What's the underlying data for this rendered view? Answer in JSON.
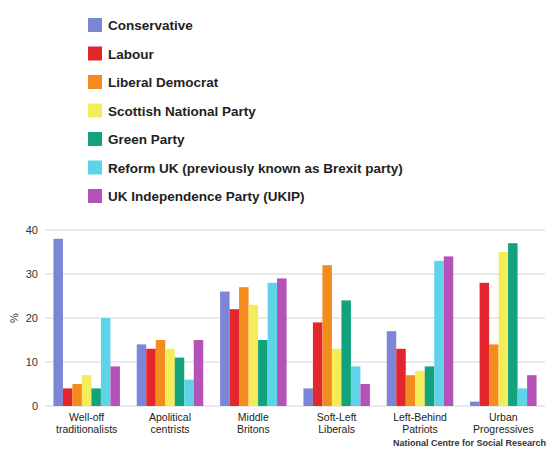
{
  "chart_data": {
    "type": "bar",
    "ylabel": "%",
    "source": "National Centre for Social Research",
    "categories": [
      "Well-off traditionalists",
      "Apolitical centrists",
      "Middle Britons",
      "Soft-Left Liberals",
      "Left-Behind Patriots",
      "Urban Progressives"
    ],
    "series": [
      {
        "name": "Conservative",
        "color": "#7b86d6",
        "values": [
          38,
          14,
          26,
          4,
          17,
          1
        ]
      },
      {
        "name": "Labour",
        "color": "#e3262e",
        "values": [
          4,
          13,
          22,
          19,
          13,
          28
        ]
      },
      {
        "name": "Liberal Democrat",
        "color": "#f28c1e",
        "values": [
          5,
          15,
          27,
          32,
          7,
          14
        ]
      },
      {
        "name": "Scottish National Party",
        "color": "#f5ec5a",
        "values": [
          7,
          13,
          23,
          13,
          8,
          35
        ]
      },
      {
        "name": "Green Party",
        "color": "#12a37d",
        "values": [
          4,
          11,
          15,
          24,
          9,
          37
        ]
      },
      {
        "name": "Reform UK (previously known as Brexit party)",
        "color": "#5fd3e8",
        "values": [
          20,
          6,
          28,
          9,
          33,
          4
        ]
      },
      {
        "name": "UK Independence Party (UKIP)",
        "color": "#b552b8",
        "values": [
          9,
          15,
          29,
          5,
          34,
          7
        ]
      }
    ],
    "ylim": [
      0,
      40
    ],
    "yticks": [
      0,
      10,
      20,
      30,
      40
    ],
    "grid": true,
    "legend": "top-left"
  }
}
